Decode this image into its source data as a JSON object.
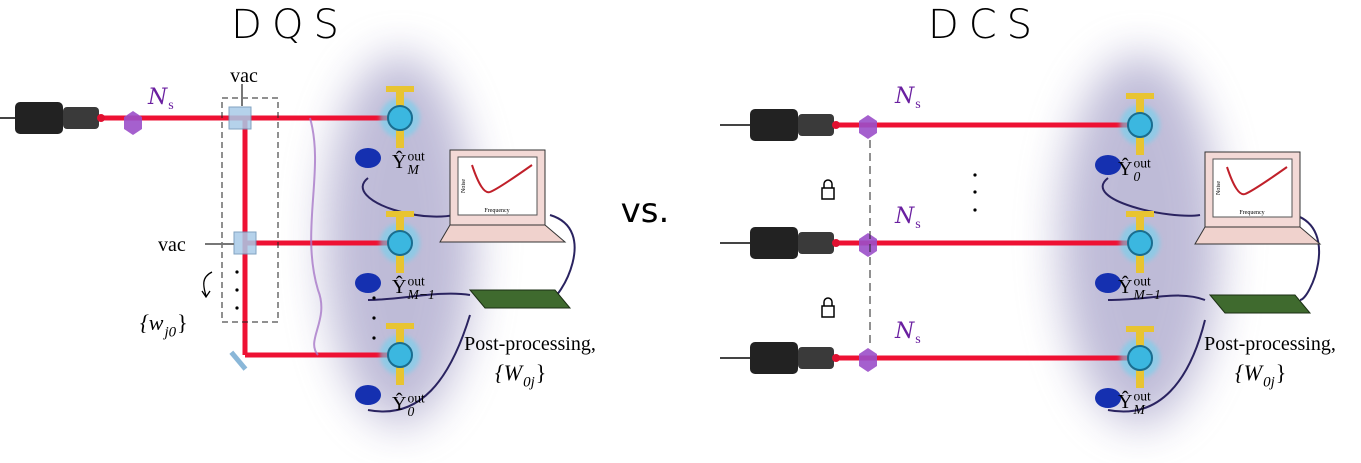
{
  "left": {
    "title": "DQS",
    "vac_top": "vac",
    "vac_side": "vac",
    "squeezing": {
      "symbol": "N",
      "sub": "s"
    },
    "weights": {
      "open": "{w",
      "sub": "j0",
      "close": "}"
    },
    "outputs": [
      {
        "symbol": "Ŷ",
        "sub": "M",
        "sup": "out"
      },
      {
        "symbol": "Ŷ",
        "sub": "M−1",
        "sup": "out"
      },
      {
        "symbol": "Ŷ",
        "sub": "0",
        "sup": "out"
      }
    ],
    "laptop": {
      "y_label": "Noise",
      "x_label": "Frequency"
    },
    "processing": {
      "label": "Post-processing,",
      "weights": {
        "open": "{W",
        "sub": "0j",
        "close": "}"
      }
    }
  },
  "separator": "vs.",
  "right": {
    "title": "DCS",
    "squeezing": [
      {
        "symbol": "N",
        "sub": "s"
      },
      {
        "symbol": "N",
        "sub": "s"
      },
      {
        "symbol": "N",
        "sub": "s"
      }
    ],
    "outputs": [
      {
        "symbol": "Ŷ",
        "sub": "0",
        "sup": "out"
      },
      {
        "symbol": "Ŷ",
        "sub": "M−1",
        "sup": "out"
      },
      {
        "symbol": "Ŷ",
        "sub": "M",
        "sup": "out"
      }
    ],
    "laptop": {
      "y_label": "Noise",
      "x_label": "Frequency"
    },
    "processing": {
      "label": "Post-processing,",
      "weights": {
        "open": "{W",
        "sub": "0j",
        "close": "}"
      }
    }
  }
}
